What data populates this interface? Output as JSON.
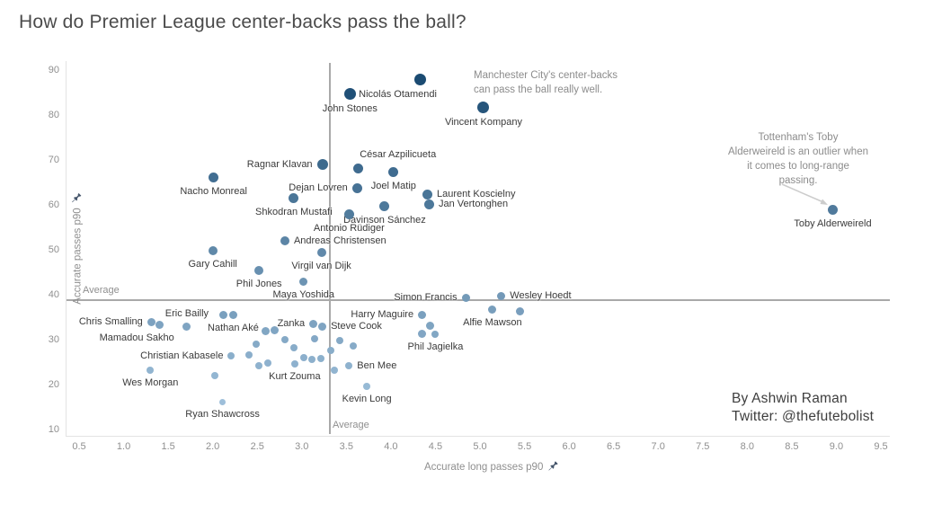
{
  "title": "How do Premier League center-backs pass the ball?",
  "byline": {
    "line1": "By Ashwin Raman",
    "line2": "Twitter: @thefutebolist"
  },
  "annotations": {
    "man_city": "Manchester City's center-backs\ncan pass the ball really well.",
    "alderweireld": "Tottenham's Toby\nAlderweireld is an outlier when\nit comes to long-range\npassing."
  },
  "colors": {
    "dot_dark": "#17486f",
    "dot_light": "#a9c9e3",
    "avg_line": "#a9a9a9",
    "label": "#3a3a3a",
    "tick": "#8f8f8f",
    "annotation": "#8c8c8c",
    "pin": "#44546a",
    "arrow": "#cccccc"
  },
  "chart_data": {
    "type": "scatter",
    "title": "How do Premier League center-backs pass the ball?",
    "xlabel": "Accurate long passes p90",
    "ylabel": "Accurate passes p90",
    "xlim": [
      0.5,
      9.5
    ],
    "ylim": [
      10,
      90
    ],
    "x_tick_step": 0.5,
    "y_tick_step": 10,
    "grid": false,
    "legend": false,
    "average_x": 3.3,
    "average_y": 39,
    "avg_label": "Average",
    "points": [
      {
        "name": "Nicolás Otamendi",
        "x": 4.33,
        "y": 88.0,
        "label_pos": "below-left"
      },
      {
        "name": "John Stones",
        "x": 3.54,
        "y": 84.8,
        "label_pos": "below"
      },
      {
        "name": "Vincent Kompany",
        "x": 5.04,
        "y": 81.8,
        "label_pos": "below"
      },
      {
        "name": "Ragnar Klavan",
        "x": 3.23,
        "y": 69.0,
        "label_pos": "left"
      },
      {
        "name": "César Azpilicueta",
        "x": 3.63,
        "y": 68.2,
        "label_pos": "above-right"
      },
      {
        "name": "Joel Matip",
        "x": 4.03,
        "y": 67.4,
        "label_pos": "below"
      },
      {
        "name": "Nacho Monreal",
        "x": 2.01,
        "y": 66.2,
        "label_pos": "below"
      },
      {
        "name": "Dejan Lovren",
        "x": 3.62,
        "y": 63.8,
        "label_pos": "left"
      },
      {
        "name": "Laurent Koscielny",
        "x": 4.41,
        "y": 62.4,
        "label_pos": "right"
      },
      {
        "name": "Shkodran Mustafi",
        "x": 2.91,
        "y": 61.6,
        "label_pos": "below"
      },
      {
        "name": "Jan Vertonghen",
        "x": 4.43,
        "y": 60.2,
        "label_pos": "right"
      },
      {
        "name": "Davinson Sánchez",
        "x": 3.93,
        "y": 59.8,
        "label_pos": "below"
      },
      {
        "name": "Toby Alderweireld",
        "x": 8.96,
        "y": 59.0,
        "label_pos": "below"
      },
      {
        "name": "Antonio Rüdiger",
        "x": 3.53,
        "y": 58.0,
        "label_pos": "below"
      },
      {
        "name": "Andreas Christensen",
        "x": 2.81,
        "y": 52.0,
        "label_pos": "right"
      },
      {
        "name": "Gary Cahill",
        "x": 2.0,
        "y": 49.8,
        "label_pos": "below"
      },
      {
        "name": "Virgil van Dijk",
        "x": 3.22,
        "y": 49.4,
        "label_pos": "below"
      },
      {
        "name": "Phil Jones",
        "x": 2.52,
        "y": 45.4,
        "label_pos": "below"
      },
      {
        "name": "Maya Yoshida",
        "x": 3.02,
        "y": 43.0,
        "label_pos": "below"
      },
      {
        "name": "Wesley Hoedt",
        "x": 5.24,
        "y": 39.8,
        "label_pos": "right"
      },
      {
        "name": "Simon Francis",
        "x": 4.84,
        "y": 39.4,
        "label_pos": "left"
      },
      {
        "name": "Alfie Mawson",
        "x": 5.14,
        "y": 36.8,
        "label_pos": "below"
      },
      {
        "name": "Harry Maguire",
        "x": 4.35,
        "y": 35.6,
        "label_pos": "left"
      },
      {
        "name": "Nathan Aké",
        "x": 2.23,
        "y": 35.6,
        "label_pos": "below"
      },
      {
        "name": "Chris Smalling",
        "x": 1.31,
        "y": 34.0,
        "label_pos": "left"
      },
      {
        "name": "Zanka",
        "x": 3.13,
        "y": 33.6,
        "label_pos": "left"
      },
      {
        "name": "Mamadou Sakho",
        "x": 1.4,
        "y": 33.4,
        "label_pos": "below-left"
      },
      {
        "name": "Eric Bailly",
        "x": 1.71,
        "y": 33.0,
        "label_pos": "above"
      },
      {
        "name": "Steve Cook",
        "x": 3.23,
        "y": 33.0,
        "label_pos": "right"
      },
      {
        "name": "Phil Jagielka",
        "x": 4.5,
        "y": 31.2,
        "label_pos": "below"
      },
      {
        "name": "Christian Kabasele",
        "x": 2.21,
        "y": 26.4,
        "label_pos": "left"
      },
      {
        "name": "Kurt Zouma",
        "x": 2.92,
        "y": 24.6,
        "label_pos": "below"
      },
      {
        "name": "Ben Mee",
        "x": 3.53,
        "y": 24.2,
        "label_pos": "right"
      },
      {
        "name": "Wes Morgan",
        "x": 1.3,
        "y": 23.2,
        "label_pos": "below"
      },
      {
        "name": "Kevin Long",
        "x": 3.73,
        "y": 19.6,
        "label_pos": "below"
      },
      {
        "name": "Ryan Shawcross",
        "x": 2.11,
        "y": 16.2,
        "label_pos": "below"
      }
    ],
    "unlabeled_points": [
      [
        2.12,
        35.6
      ],
      [
        2.59,
        32.0
      ],
      [
        2.69,
        32.2
      ],
      [
        2.81,
        30.0
      ],
      [
        2.49,
        29.0
      ],
      [
        2.41,
        26.6
      ],
      [
        2.52,
        24.2
      ],
      [
        2.62,
        24.8
      ],
      [
        2.91,
        28.2
      ],
      [
        3.02,
        26.0
      ],
      [
        3.11,
        25.6
      ],
      [
        3.14,
        30.2
      ],
      [
        3.21,
        25.8
      ],
      [
        3.33,
        27.6
      ],
      [
        3.43,
        29.9
      ],
      [
        3.58,
        28.6
      ],
      [
        2.02,
        22.0
      ],
      [
        5.45,
        36.4
      ],
      [
        4.35,
        31.4
      ],
      [
        4.44,
        33.2
      ],
      [
        3.37,
        23.2
      ]
    ]
  }
}
